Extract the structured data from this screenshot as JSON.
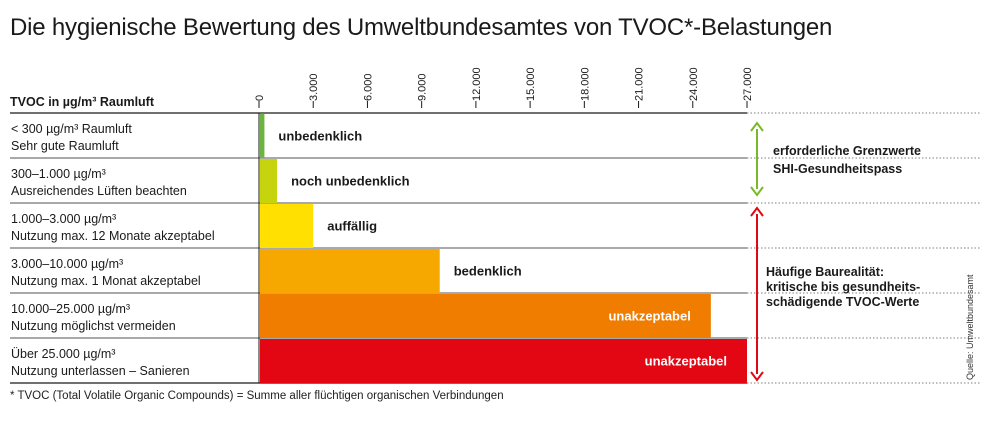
{
  "title": "Die hygienische Bewertung des Umweltbundesamtes von TVOC*-Belastungen",
  "footnote": "* TVOC (Total Volatile Organic Compounds) = Summe aller flüchtigen organischen Verbindungen",
  "source": "Quelle: Umweltbundesamt",
  "axis_header": "TVOC in µg/m³ Raumluft",
  "side_notes": {
    "green_lines": [
      "erforderliche Grenzwerte",
      "SHI-Gesundheitspass"
    ],
    "red_lines": [
      "Häufige Baurealität:",
      "kritische bis gesundheits-",
      "schädigende TVOC-Werte"
    ]
  },
  "colors": {
    "arrow_green": "#7ab829",
    "arrow_red": "#e30613",
    "bars": [
      "#6db33f",
      "#c6d40e",
      "#ffe000",
      "#f7a800",
      "#f07c00",
      "#e30613"
    ]
  },
  "chart_data": {
    "type": "bar",
    "orientation": "horizontal",
    "title": "Die hygienische Bewertung des Umweltbundesamtes von TVOC*-Belastungen",
    "ylabel": "TVOC in µg/m³ Raumluft",
    "xlim": [
      0,
      27000
    ],
    "xticks": [
      "0",
      "3.000",
      "6.000",
      "9.000",
      "12.000",
      "15.000",
      "18.000",
      "21.000",
      "24.000",
      "27.000"
    ],
    "categories": [
      [
        "< 300 µg/m³ Raumluft",
        "Sehr gute Raumluft"
      ],
      [
        "300–1.000 µg/m³",
        "Ausreichendes Lüften beachten"
      ],
      [
        "1.000–3.000 µg/m³",
        "Nutzung max. 12 Monate akzeptabel"
      ],
      [
        "3.000–10.000 µg/m³",
        "Nutzung max. 1 Monat akzeptabel"
      ],
      [
        "10.000–25.000 µg/m³",
        "Nutzung möglichst vermeiden"
      ],
      [
        "Über 25.000 µg/m³",
        "Nutzung unterlassen – Sanieren"
      ]
    ],
    "values": [
      300,
      1000,
      3000,
      10000,
      25000,
      27000
    ],
    "data_labels": [
      "unbedenklich",
      "noch unbedenklich",
      "auffällig",
      "bedenklich",
      "unakzeptabel",
      "unakzeptabel"
    ]
  }
}
